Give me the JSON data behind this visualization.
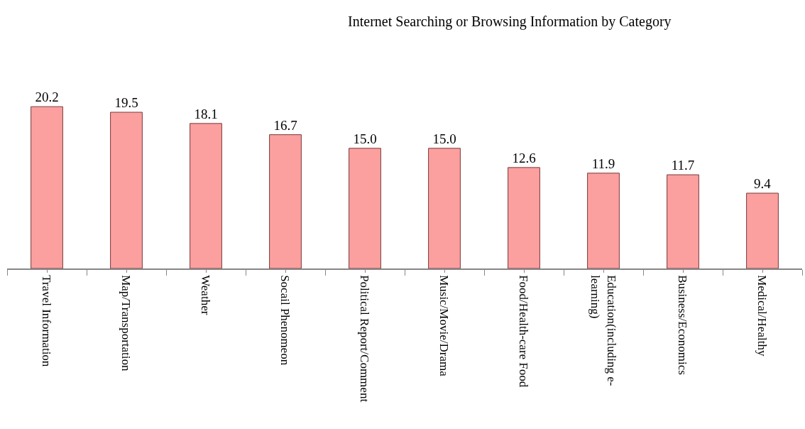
{
  "chart_data": {
    "type": "bar",
    "title": "Internet Searching or Browsing Information by Category",
    "categories": [
      "Travel Information",
      "Map/Transportation",
      "Weather",
      "Socail Phenomeon",
      "Political Report/Comment",
      "Music/Movie/Drama",
      "Food/Health-care Food",
      "Education(including e-learning)",
      "Business/Economics",
      "Medical/Healthy"
    ],
    "values": [
      20.2,
      19.5,
      18.1,
      16.7,
      15.0,
      15.0,
      12.6,
      11.9,
      11.7,
      9.4
    ],
    "value_labels": [
      "20.2",
      "19.5",
      "18.1",
      "16.7",
      "15.0",
      "15.0",
      "12.6",
      "11.9",
      "11.7",
      "9.4"
    ],
    "color": "#fb9f9f"
  }
}
